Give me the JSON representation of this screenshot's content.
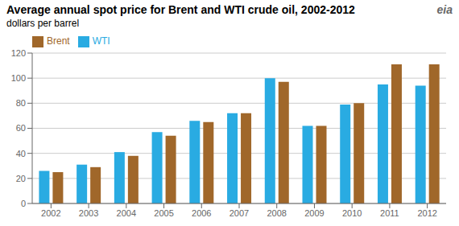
{
  "chart_data": {
    "type": "bar",
    "title": "Average annual spot price for Brent and WTI crude oil, 2002-2012",
    "subtitle": "dollars per barrel",
    "annotations": [
      "eia"
    ],
    "categories": [
      "2002",
      "2003",
      "2004",
      "2005",
      "2006",
      "2007",
      "2008",
      "2009",
      "2010",
      "2011",
      "2012"
    ],
    "series": [
      {
        "name": "WTI",
        "color": "#29ABE2",
        "values": [
          26,
          31,
          41,
          57,
          66,
          72,
          100,
          62,
          79,
          95,
          94
        ]
      },
      {
        "name": "Brent",
        "color": "#A0672A",
        "values": [
          25,
          29,
          38,
          54,
          65,
          72,
          97,
          62,
          80,
          111,
          111
        ]
      }
    ],
    "ylim": [
      0,
      120
    ],
    "yticks": [
      0,
      20,
      40,
      60,
      80,
      100,
      120
    ],
    "grid": true,
    "legend": "upper left"
  }
}
